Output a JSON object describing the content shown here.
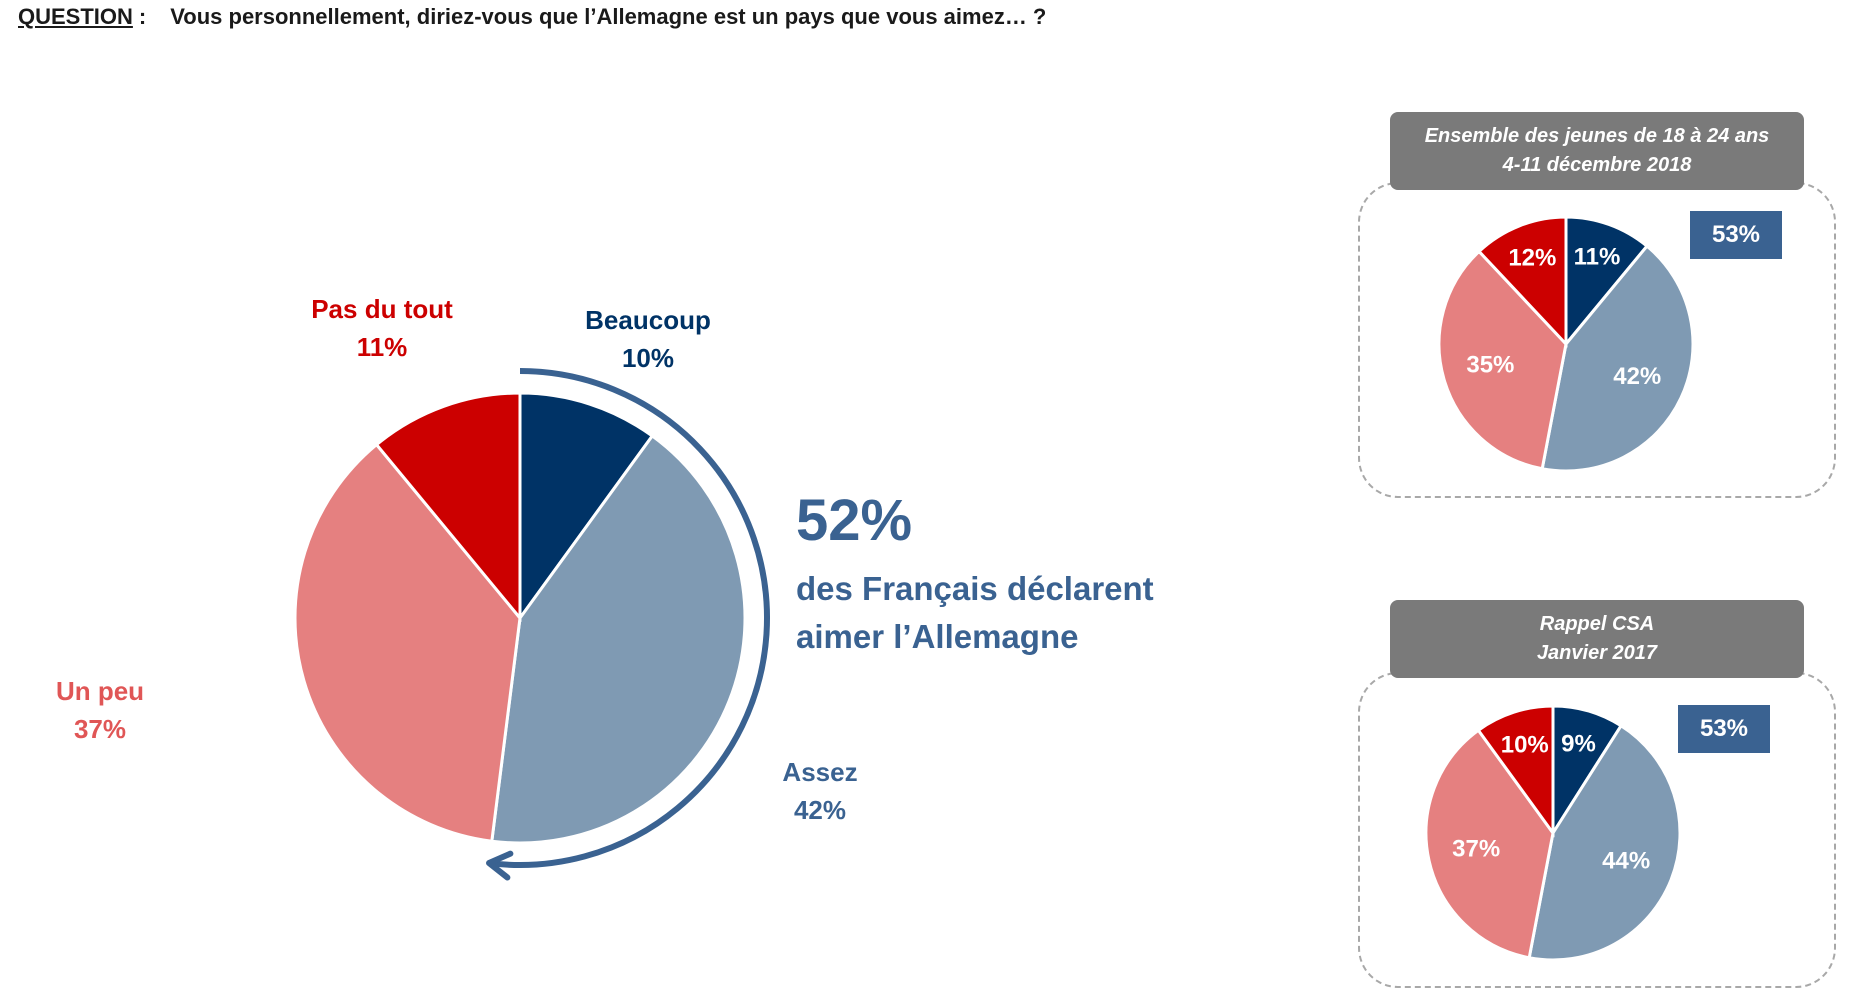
{
  "question": {
    "label": "QUESTION",
    "colon": ":",
    "text": "Vous personnellement, diriez-vous que l’Allemagne est un pays que vous aimez… ?"
  },
  "colors": {
    "beaucoup": "#003366",
    "assez": "#7f9ab3",
    "un_peu": "#e58080",
    "pas_du_tout": "#cc0000",
    "accent": "#3a6291",
    "header_bg": "#7a7a7a"
  },
  "main": {
    "labels": {
      "beaucoup": "Beaucoup",
      "assez": "Assez",
      "un_peu": "Un peu",
      "pas_du_tout": "Pas du tout"
    },
    "values_text": {
      "beaucoup": "10%",
      "assez": "42%",
      "un_peu": "37%",
      "pas_du_tout": "11%"
    },
    "highlight": {
      "pct": "52%",
      "line1": "des Français déclarent",
      "line2": "aimer l’Allemagne"
    }
  },
  "panels": [
    {
      "title_line1": "Ensemble des jeunes de 18 à 24 ans",
      "title_line2": "4-11 décembre 2018",
      "total": "53%",
      "pct_labels": {
        "beaucoup": "11%",
        "assez": "42%",
        "un_peu": "35%",
        "pas_du_tout": "12%"
      }
    },
    {
      "title_line1": "Rappel CSA",
      "title_line2": "Janvier 2017",
      "total": "53%",
      "pct_labels": {
        "beaucoup": "9%",
        "assez": "44%",
        "un_peu": "37%",
        "pas_du_tout": "10%"
      }
    }
  ],
  "chart_data": [
    {
      "type": "pie",
      "title": "Vous personnellement, diriez-vous que l’Allemagne est un pays que vous aimez… ?",
      "categories": [
        "Beaucoup",
        "Assez",
        "Un peu",
        "Pas du tout"
      ],
      "values": [
        10,
        42,
        37,
        11
      ],
      "annotation": "52% des Français déclarent aimer l’Allemagne"
    },
    {
      "type": "pie",
      "title": "Ensemble des jeunes de 18 à 24 ans – 4-11 décembre 2018",
      "categories": [
        "Beaucoup",
        "Assez",
        "Un peu",
        "Pas du tout"
      ],
      "values": [
        11,
        42,
        35,
        12
      ],
      "total_aime": 53
    },
    {
      "type": "pie",
      "title": "Rappel CSA – Janvier 2017",
      "categories": [
        "Beaucoup",
        "Assez",
        "Un peu",
        "Pas du tout"
      ],
      "values": [
        9,
        44,
        37,
        10
      ],
      "total_aime": 53
    }
  ]
}
